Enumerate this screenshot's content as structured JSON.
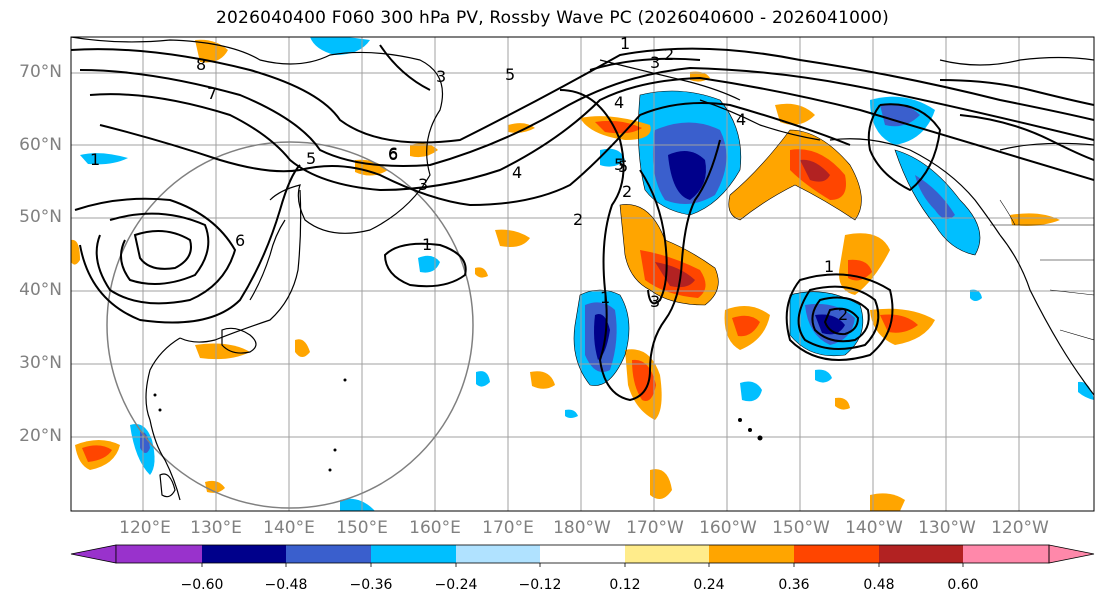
{
  "title": "2026040400 F060 300 hPa PV, Rossby Wave PC (2026040600 - 2026041000)",
  "lat_labels": [
    "70°N",
    "60°N",
    "50°N",
    "40°N",
    "30°N",
    "20°N"
  ],
  "lon_labels": [
    "120°E",
    "130°E",
    "140°E",
    "150°E",
    "160°E",
    "170°E",
    "180°W",
    "170°W",
    "160°W",
    "150°W",
    "140°W",
    "130°W",
    "120°W"
  ],
  "colorbar": {
    "ticks": [
      "−0.60",
      "−0.48",
      "−0.36",
      "−0.24",
      "−0.12",
      "0.12",
      "0.24",
      "0.36",
      "0.48",
      "0.60"
    ],
    "colors": [
      "#9932cc",
      "#00008b",
      "#3a5fcd",
      "#00bfff",
      "#b0e2ff",
      "#ffffff",
      "#ffec8b",
      "#ffa500",
      "#ff4500",
      "#b22222",
      "#ff88aa"
    ]
  },
  "contour_labels": [
    "1",
    "2",
    "3",
    "4",
    "5",
    "6",
    "7",
    "8",
    "1",
    "2",
    "3",
    "4",
    "5",
    "6",
    "5",
    "4",
    "3",
    "2",
    "1",
    "1",
    "2",
    "3",
    "1",
    "6",
    "5"
  ]
}
